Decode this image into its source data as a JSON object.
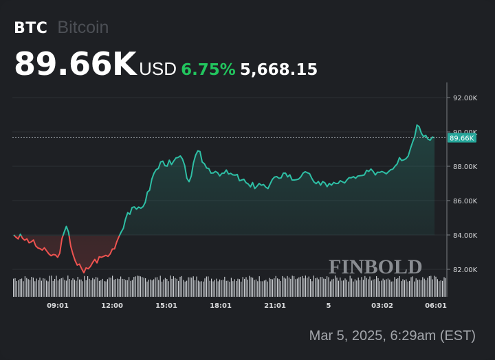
{
  "header": {
    "symbol": "BTC",
    "name": "Bitcoin",
    "price": "89.66K",
    "currency": "USD",
    "change_pct": "6.75%",
    "change_abs": "5,668.15"
  },
  "colors": {
    "background": "#1e2024",
    "up_line": "#2ebfa5",
    "down_line": "#ef5350",
    "positive_text": "#22c55e",
    "price_tag": "#26a69a"
  },
  "watermark": "FINBOLD",
  "timestamp": "Mar 5, 2025, 6:29am (EST)",
  "price_tag": "89.66K",
  "chart_data": {
    "type": "line",
    "title": "BTC Bitcoin",
    "xlabel": "",
    "ylabel": "USD",
    "ylim": [
      81000,
      92500
    ],
    "grid": true,
    "y_ticks": [
      "92.00K",
      "90.00K",
      "88.00K",
      "86.00K",
      "84.00K",
      "82.00K"
    ],
    "x_ticks": [
      "09:01",
      "12:00",
      "15:01",
      "18:01",
      "21:01",
      "5",
      "03:02",
      "06:01"
    ],
    "baseline": 83990,
    "last_price": 89660,
    "x": [
      "06:30",
      "07:00",
      "07:30",
      "08:00",
      "08:30",
      "09:00",
      "09:30",
      "10:00",
      "10:30",
      "11:00",
      "11:30",
      "12:00",
      "12:30",
      "13:00",
      "13:30",
      "14:00",
      "14:30",
      "15:00",
      "15:30",
      "16:00",
      "16:30",
      "17:00",
      "17:30",
      "18:00",
      "18:30",
      "19:00",
      "19:30",
      "20:00",
      "20:30",
      "21:00",
      "21:30",
      "22:00",
      "22:30",
      "23:00",
      "23:30",
      "00:00",
      "00:30",
      "01:00",
      "01:30",
      "02:00",
      "02:30",
      "03:00",
      "03:30",
      "04:00",
      "04:30",
      "05:00",
      "05:30",
      "06:00",
      "06:29"
    ],
    "values": [
      84000,
      83800,
      83600,
      83200,
      82900,
      82700,
      84500,
      82500,
      81800,
      82400,
      82700,
      82900,
      83900,
      85300,
      85500,
      85900,
      87600,
      88300,
      88100,
      88600,
      87100,
      88900,
      87900,
      87700,
      87600,
      87500,
      87200,
      86800,
      87000,
      86700,
      87400,
      87600,
      87200,
      87600,
      87300,
      86900,
      87000,
      87000,
      87200,
      87300,
      87500,
      87700,
      87700,
      87800,
      88500,
      88600,
      90400,
      89800,
      89660
    ]
  },
  "volume": {
    "label": "volume-bars"
  }
}
